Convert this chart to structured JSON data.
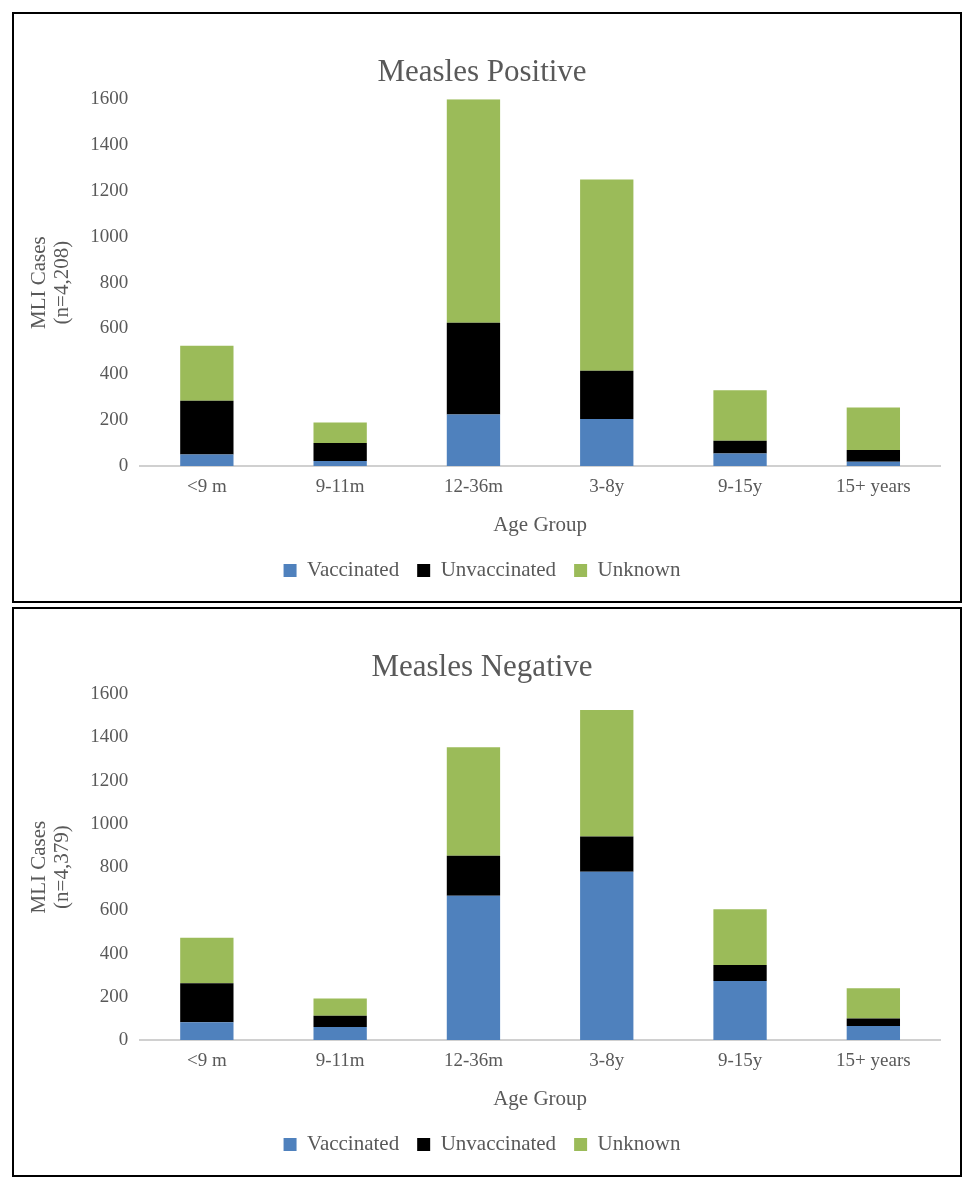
{
  "chart_data": [
    {
      "type": "bar",
      "title": "Measles Positive",
      "xlabel": "Age Group",
      "ylabel": "MLI Cases\n(n=4,208)",
      "categories": [
        "<9 m",
        "9-11m",
        "12-36m",
        "3-8y",
        "9-15y",
        "15+ years"
      ],
      "stacked": true,
      "ylim": [
        0,
        1600
      ],
      "yticks": [
        0,
        200,
        400,
        600,
        800,
        1000,
        1200,
        1400,
        1600
      ],
      "grid": false,
      "legend": "bottom",
      "series": [
        {
          "name": "Vaccinated",
          "color": "#4f81bd",
          "values": [
            50,
            22,
            225,
            205,
            55,
            18
          ]
        },
        {
          "name": "Unvaccinated",
          "color": "#000000",
          "values": [
            235,
            78,
            400,
            210,
            55,
            52
          ]
        },
        {
          "name": "Unknown",
          "color": "#9bbb59",
          "values": [
            240,
            90,
            975,
            835,
            220,
            185
          ]
        }
      ]
    },
    {
      "type": "bar",
      "title": "Measles Negative",
      "xlabel": "Age Group",
      "ylabel": "MLI Cases\n(n=4,379)",
      "categories": [
        "<9 m",
        "9-11m",
        "12-36m",
        "3-8y",
        "9-15y",
        "15+ years"
      ],
      "stacked": true,
      "ylim": [
        0,
        1600
      ],
      "yticks": [
        0,
        200,
        400,
        600,
        800,
        1000,
        1200,
        1400,
        1600
      ],
      "grid": false,
      "legend": "bottom",
      "series": [
        {
          "name": "Vaccinated",
          "color": "#4f81bd",
          "values": [
            82,
            60,
            668,
            779,
            273,
            65
          ]
        },
        {
          "name": "Unvaccinated",
          "color": "#000000",
          "values": [
            181,
            52,
            184,
            163,
            74,
            35
          ]
        },
        {
          "name": "Unknown",
          "color": "#9bbb59",
          "values": [
            210,
            80,
            503,
            585,
            258,
            139
          ]
        }
      ]
    }
  ]
}
